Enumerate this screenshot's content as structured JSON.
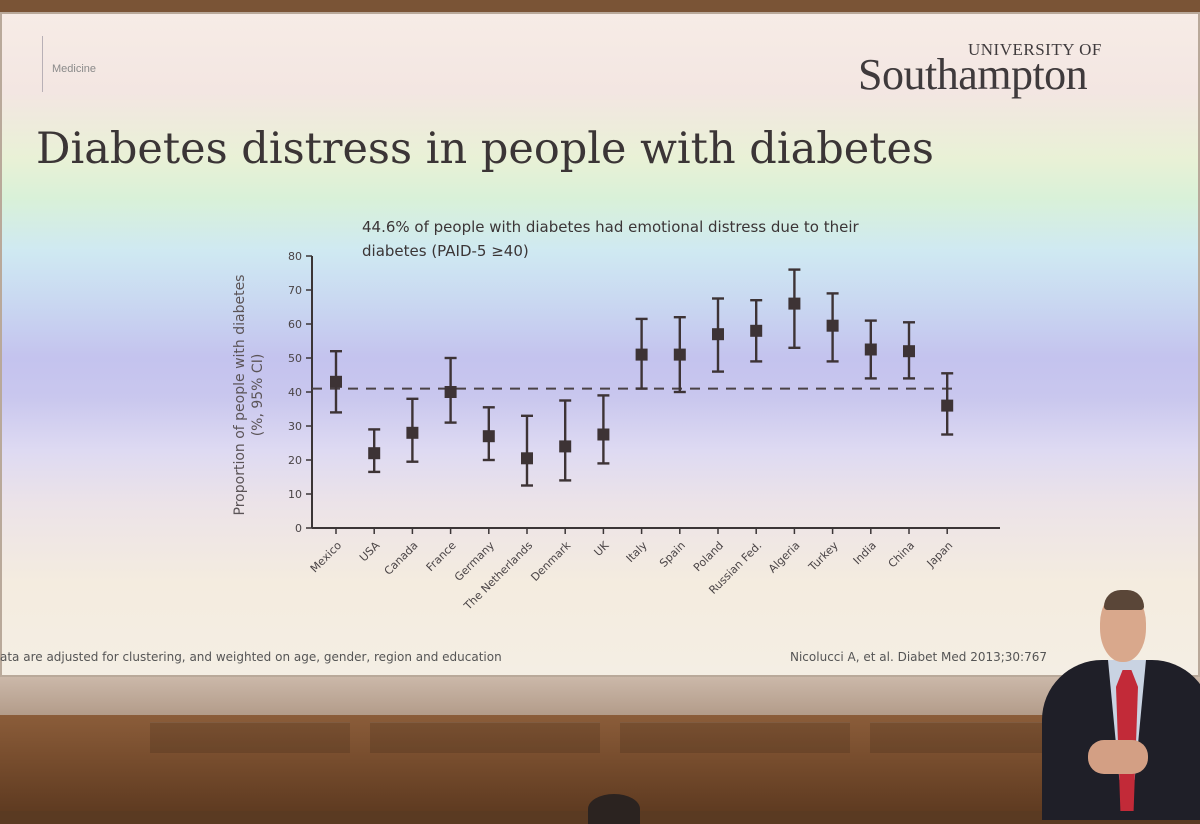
{
  "slide": {
    "section": "Medicine",
    "university_top": "UNIVERSITY OF",
    "university_main": "Southampton",
    "title": "Diabetes distress in people with diabetes",
    "subtitle_line1": "44.6% of people with diabetes had emotional distress due to their",
    "subtitle_line2": "diabetes (PAID-5 ≥40)",
    "footnote": "ata are adjusted for clustering, and weighted on age, gender, region and education",
    "citation": "Nicolucci A, et al. Diabet Med 2013;30:767"
  },
  "chart_data": {
    "type": "scatter",
    "subtype": "point-estimate with error bars (95% CI)",
    "ylabel": "Proportion of people with diabetes (%, 95% CI)",
    "ylabel_line1": "Proportion of people with diabetes",
    "ylabel_line2": "(%, 95% CI)",
    "ylim": [
      0,
      80
    ],
    "yticks": [
      0,
      10,
      20,
      30,
      40,
      50,
      60,
      70,
      80
    ],
    "reference_line": 41,
    "categories": [
      "Mexico",
      "USA",
      "Canada",
      "France",
      "Germany",
      "The Netherlands",
      "Denmark",
      "UK",
      "Italy",
      "Spain",
      "Poland",
      "Russian Fed.",
      "Algeria",
      "Turkey",
      "India",
      "China",
      "Japan"
    ],
    "series": [
      {
        "values": [
          43,
          22,
          28,
          40,
          27,
          20.5,
          24,
          27.5,
          51,
          51,
          57,
          58,
          66,
          59.5,
          52.5,
          52,
          36
        ],
        "ci_low": [
          34,
          16.5,
          19.5,
          31,
          20,
          12.5,
          14,
          19,
          41,
          40,
          46,
          49,
          53,
          49,
          44,
          44,
          27.5
        ],
        "ci_high": [
          52,
          29,
          38,
          50,
          35.5,
          33,
          37.5,
          39,
          61.5,
          62,
          67.5,
          67,
          76,
          69,
          61,
          60.5,
          45.5
        ]
      }
    ],
    "grid": false,
    "legend": "none",
    "colors": {
      "marker": "#3d3335",
      "reference_line": "#4a4245"
    }
  }
}
